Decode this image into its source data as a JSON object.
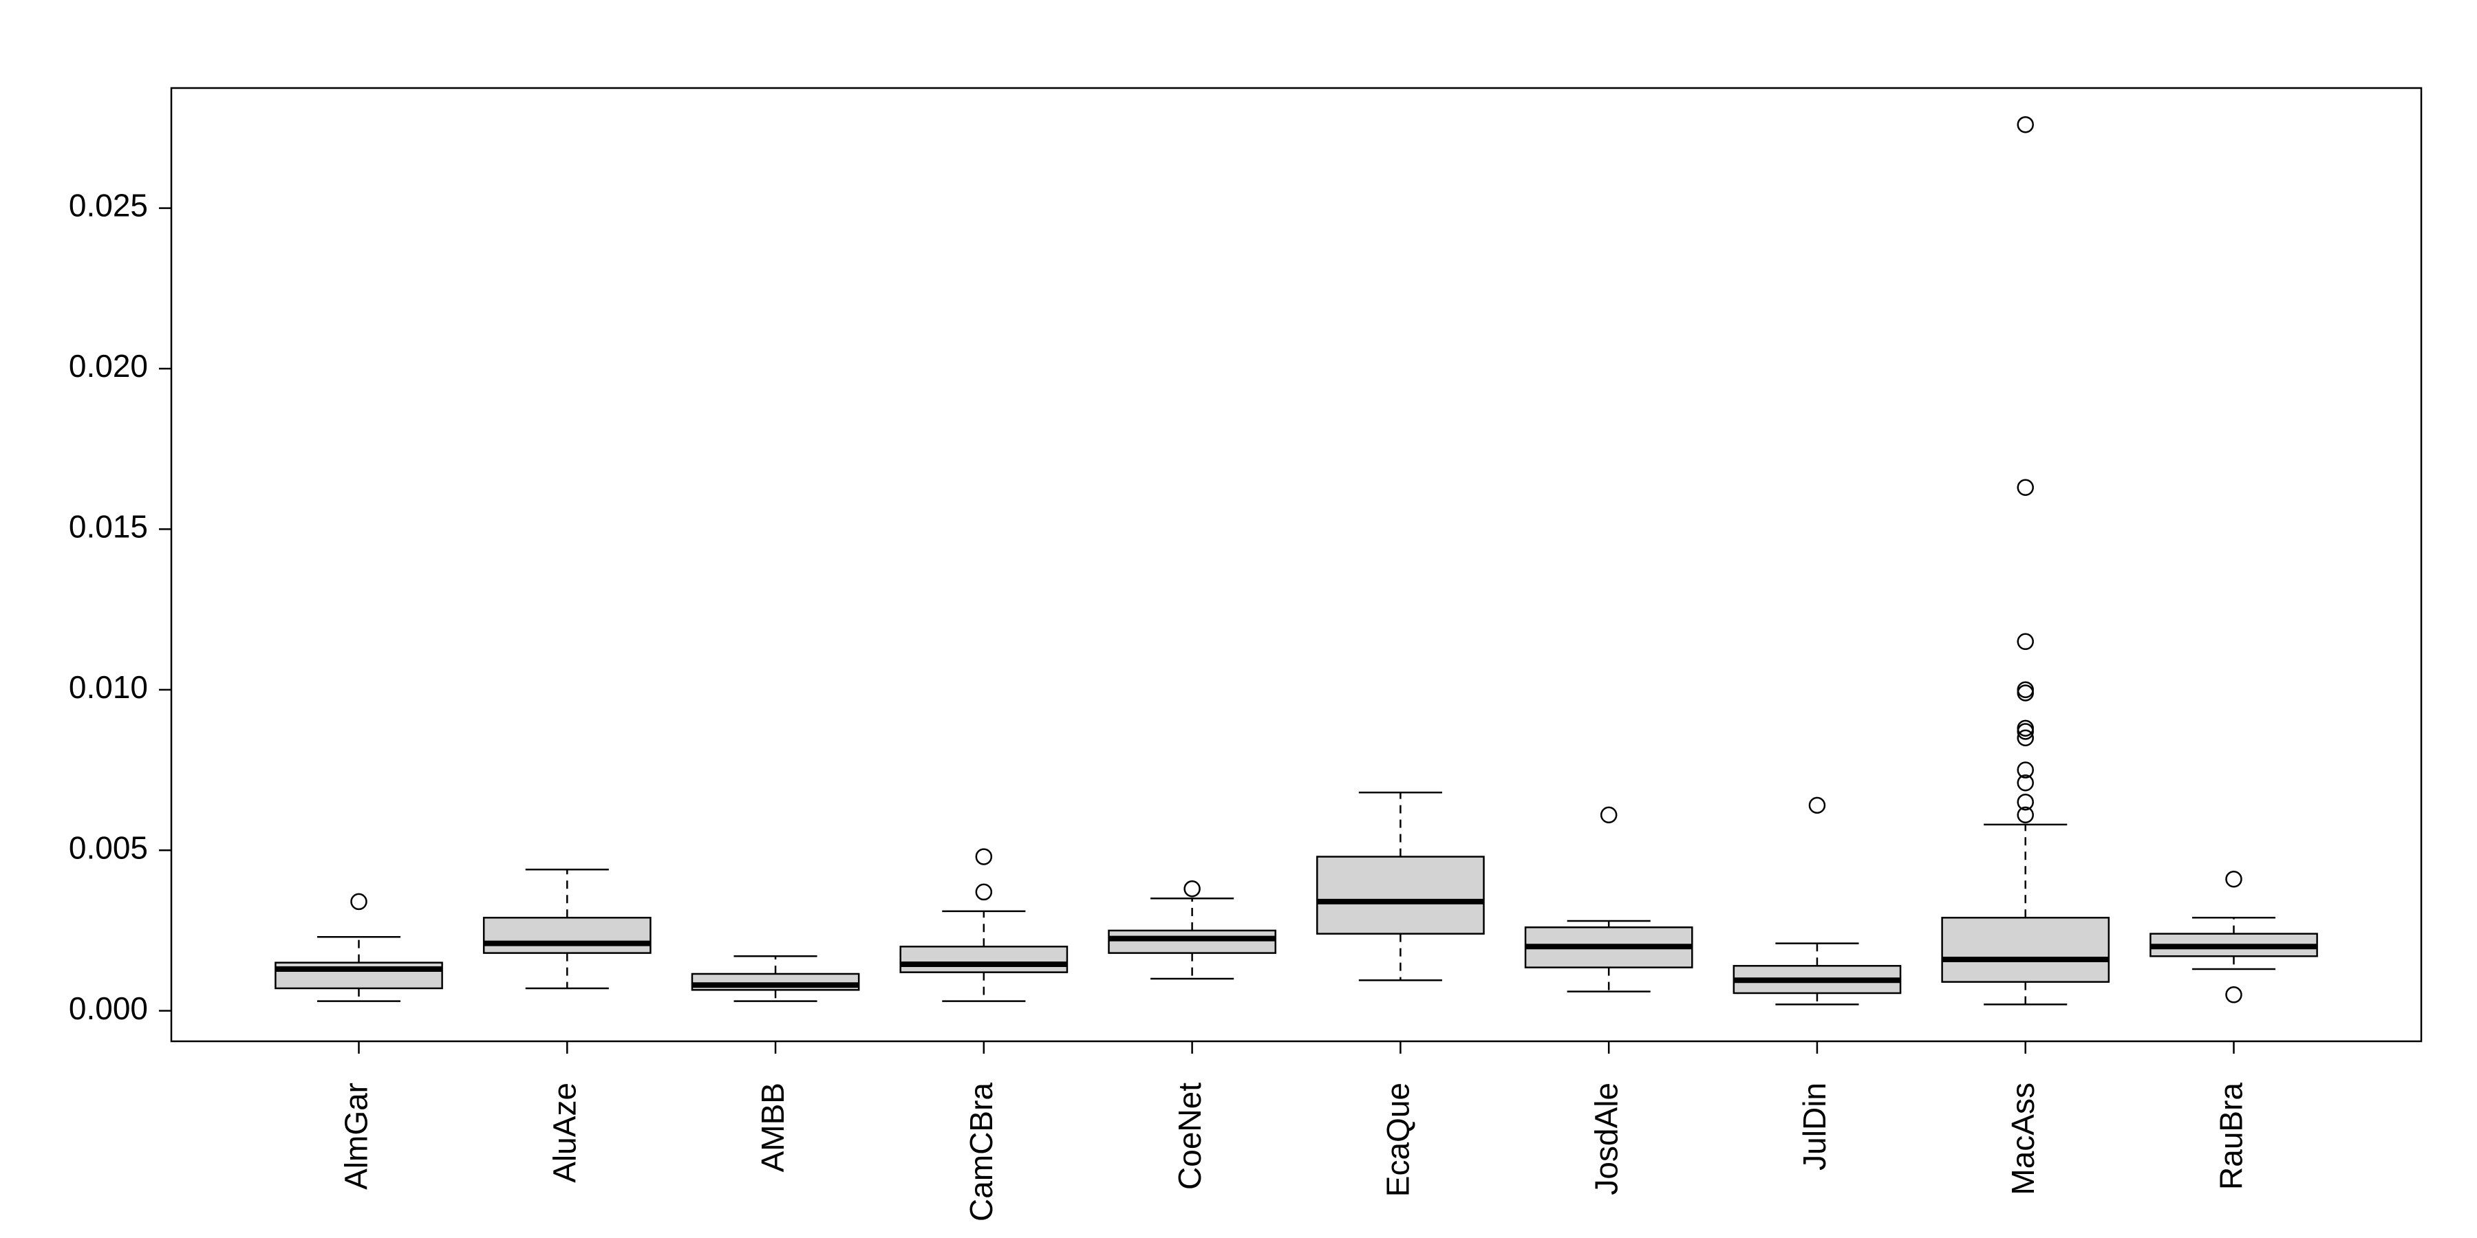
{
  "chart_data": {
    "type": "boxplot",
    "color": "#d3d3d3",
    "categories": [
      "AlmGar",
      "AluAze",
      "AMBB",
      "CamCBra",
      "CoeNet",
      "EcaQue",
      "JosdAle",
      "JulDin",
      "MacAss",
      "RauBra"
    ],
    "boxes": [
      {
        "whisker_low": 0.0003,
        "q1": 0.0007,
        "median": 0.0013,
        "q3": 0.0015,
        "whisker_high": 0.0023,
        "outliers": [
          0.0034
        ]
      },
      {
        "whisker_low": 0.0007,
        "q1": 0.0018,
        "median": 0.0021,
        "q3": 0.0029,
        "whisker_high": 0.0044
      },
      {
        "whisker_low": 0.0003,
        "q1": 0.00065,
        "median": 0.0008,
        "q3": 0.00115,
        "whisker_high": 0.0017
      },
      {
        "whisker_low": 0.0003,
        "q1": 0.0012,
        "median": 0.00145,
        "q3": 0.002,
        "whisker_high": 0.0031,
        "outliers": [
          0.0037,
          0.0048
        ]
      },
      {
        "whisker_low": 0.001,
        "q1": 0.0018,
        "median": 0.00225,
        "q3": 0.0025,
        "whisker_high": 0.0035,
        "outliers": [
          0.0038
        ]
      },
      {
        "whisker_low": 0.00095,
        "q1": 0.0024,
        "median": 0.0034,
        "q3": 0.0048,
        "whisker_high": 0.0068
      },
      {
        "whisker_low": 0.0006,
        "q1": 0.00135,
        "median": 0.002,
        "q3": 0.0026,
        "whisker_high": 0.0028,
        "outliers": [
          0.0061
        ]
      },
      {
        "whisker_low": 0.0002,
        "q1": 0.00055,
        "median": 0.00095,
        "q3": 0.0014,
        "whisker_high": 0.0021,
        "outliers": [
          0.0064
        ]
      },
      {
        "whisker_low": 0.0002,
        "q1": 0.0009,
        "median": 0.0016,
        "q3": 0.0029,
        "whisker_high": 0.0058,
        "outliers": [
          0.0061,
          0.0065,
          0.0071,
          0.0075,
          0.0085,
          0.0087,
          0.0088,
          0.0099,
          0.01,
          0.0115,
          0.0163,
          0.0276
        ]
      },
      {
        "whisker_low": 0.0013,
        "q1": 0.0017,
        "median": 0.002,
        "q3": 0.0024,
        "whisker_high": 0.0029,
        "outliers": [
          0.0041,
          0.0005
        ]
      }
    ],
    "ylim": [
      -0.00095,
      0.02874
    ],
    "yticks": [
      {
        "value": 0,
        "label": "0.000"
      },
      {
        "value": 0.005,
        "label": "0.005"
      },
      {
        "value": 0.01,
        "label": "0.010"
      },
      {
        "value": 0.015,
        "label": "0.015"
      },
      {
        "value": 0.02,
        "label": "0.020"
      },
      {
        "value": 0.025,
        "label": "0.025"
      }
    ]
  }
}
